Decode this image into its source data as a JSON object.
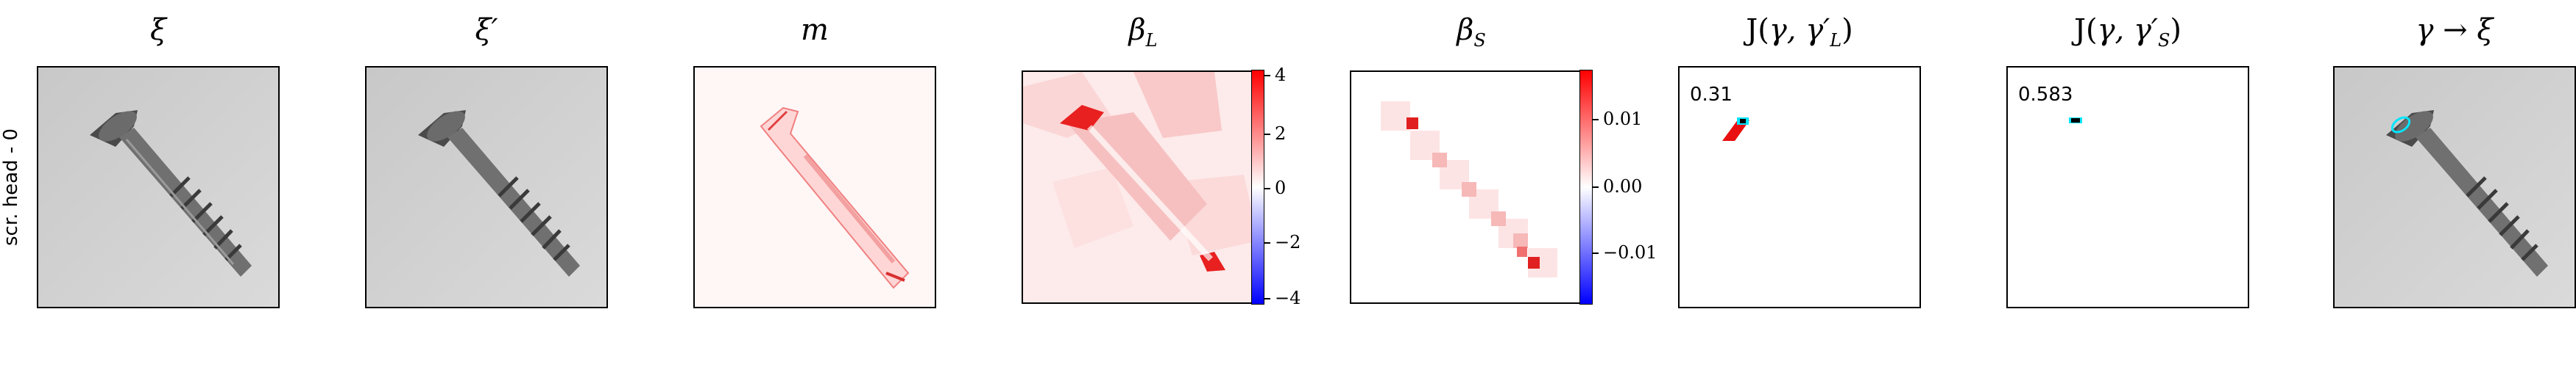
{
  "row_label": "scr. head - 0",
  "panels": {
    "xi": {
      "title": "ξ"
    },
    "xi_prime": {
      "title": "ξ′"
    },
    "m": {
      "title": "m"
    },
    "beta_l": {
      "title_base": "β",
      "title_sub": "L"
    },
    "beta_s": {
      "title_base": "β",
      "title_sub": "S"
    },
    "j_l": {
      "title_prefix": "J(",
      "title_vars": "γ, γ′",
      "title_sub": "L",
      "title_suffix": ")",
      "score": "0.31"
    },
    "j_s": {
      "title_prefix": "J(",
      "title_vars": "γ, γ′",
      "title_sub": "S",
      "title_suffix": ")",
      "score": "0.583"
    },
    "gamma_xi": {
      "title": "γ → ξ"
    }
  },
  "colorbar_l": {
    "ticks": [
      "4",
      "2",
      "0",
      "−2",
      "−4"
    ]
  },
  "colorbar_s": {
    "ticks": [
      "0.01",
      "0.00",
      "−0.01"
    ]
  },
  "colors": {
    "positive": "#ff0000",
    "negative": "#0000ff",
    "highlight": "#00e5ff"
  }
}
